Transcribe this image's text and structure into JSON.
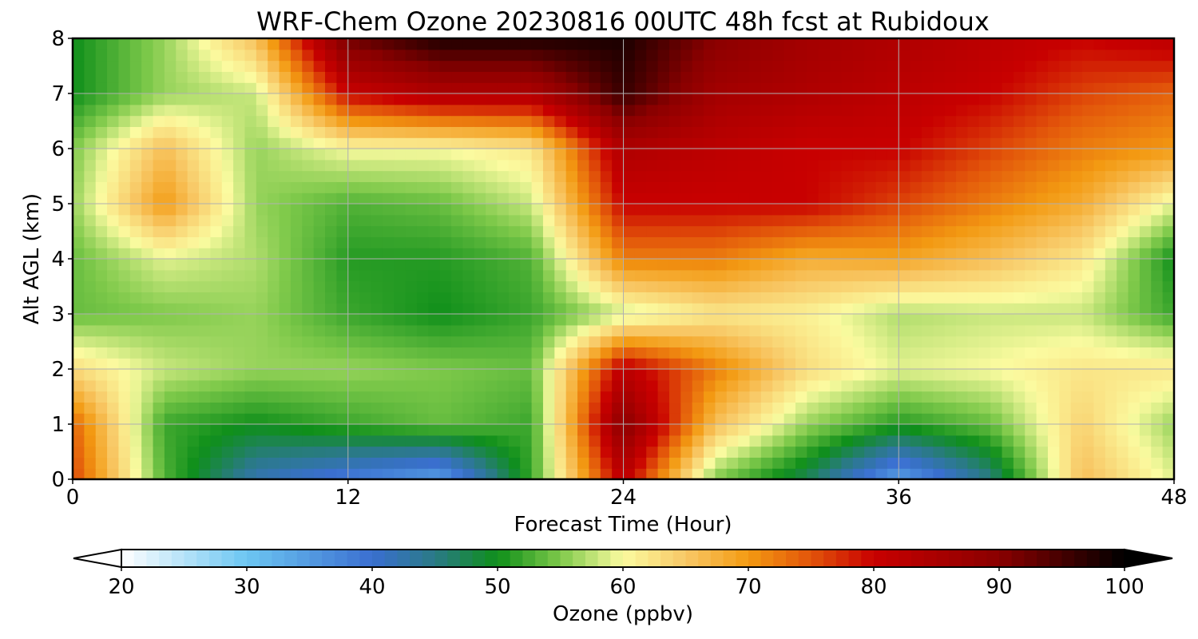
{
  "chart_data": {
    "type": "heatmap",
    "title": "WRF-Chem Ozone  20230816 00UTC 48h fcst at Rubidoux",
    "xlabel": "Forecast Time (Hour)",
    "ylabel": "Alt AGL (km)",
    "xlim": [
      0,
      48
    ],
    "ylim": [
      0,
      8
    ],
    "xticks": [
      0,
      12,
      24,
      36,
      48
    ],
    "yticks": [
      0,
      1,
      2,
      3,
      4,
      5,
      6,
      7,
      8
    ],
    "grid": true,
    "colorbar": {
      "label": "Ozone  (ppbv)",
      "vmin": 20,
      "vmax": 100,
      "ticks": [
        20,
        30,
        40,
        50,
        60,
        70,
        80,
        90,
        100
      ],
      "extend": "both",
      "position": "bottom",
      "stops": [
        {
          "value": 20,
          "color": "#ffffff"
        },
        {
          "value": 30,
          "color": "#6cc6f2"
        },
        {
          "value": 40,
          "color": "#3a6fd0"
        },
        {
          "value": 45,
          "color": "#2a7a86"
        },
        {
          "value": 50,
          "color": "#0f8f1a"
        },
        {
          "value": 55,
          "color": "#7ec94a"
        },
        {
          "value": 60,
          "color": "#fbfba0"
        },
        {
          "value": 65,
          "color": "#f8c866"
        },
        {
          "value": 70,
          "color": "#f39a12"
        },
        {
          "value": 75,
          "color": "#e2540a"
        },
        {
          "value": 80,
          "color": "#c80000"
        },
        {
          "value": 90,
          "color": "#8a0000"
        },
        {
          "value": 100,
          "color": "#000000"
        }
      ]
    },
    "x": [
      0,
      4,
      8,
      12,
      16,
      20,
      24,
      28,
      32,
      36,
      40,
      44,
      48
    ],
    "y": [
      0,
      1,
      2,
      3,
      4,
      5,
      6,
      7,
      8
    ],
    "z": [
      [
        76,
        53,
        42,
        38,
        34,
        52,
        82,
        55,
        47,
        34,
        45,
        66,
        59
      ],
      [
        74,
        52,
        50,
        52,
        54,
        52,
        90,
        66,
        56,
        51,
        54,
        64,
        56
      ],
      [
        63,
        58,
        56,
        56,
        55,
        54,
        82,
        72,
        63,
        59,
        60,
        62,
        62
      ],
      [
        54,
        55,
        56,
        52,
        50,
        52,
        58,
        62,
        61,
        57,
        58,
        58,
        52
      ],
      [
        54,
        59,
        57,
        51,
        51,
        53,
        72,
        72,
        68,
        69,
        66,
        62,
        50
      ],
      [
        56,
        70,
        56,
        53,
        54,
        58,
        80,
        80,
        80,
        76,
        72,
        68,
        59
      ],
      [
        55,
        66,
        56,
        60,
        60,
        62,
        84,
        82,
        80,
        80,
        76,
        72,
        70
      ],
      [
        50,
        56,
        58,
        80,
        84,
        84,
        96,
        86,
        84,
        82,
        80,
        76,
        74
      ],
      [
        50,
        56,
        66,
        92,
        98,
        98,
        98,
        90,
        86,
        84,
        82,
        80,
        82
      ]
    ]
  }
}
